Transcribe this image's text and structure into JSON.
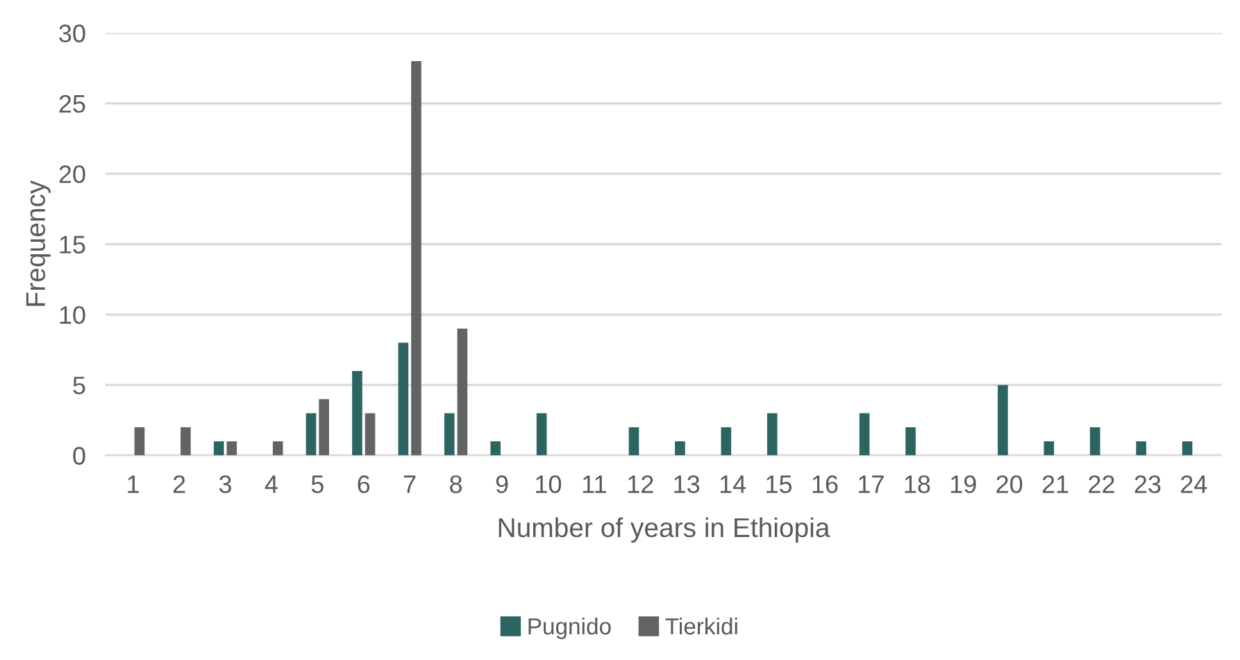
{
  "chart_data": {
    "type": "bar",
    "xlabel": "Number of years in Ethiopia",
    "ylabel": "Frequency",
    "categories": [
      "1",
      "2",
      "3",
      "4",
      "5",
      "6",
      "7",
      "8",
      "9",
      "10",
      "11",
      "12",
      "13",
      "14",
      "15",
      "16",
      "17",
      "18",
      "19",
      "20",
      "21",
      "22",
      "23",
      "24"
    ],
    "series": [
      {
        "name": "Pugnido",
        "color": "#2b6461",
        "values": [
          0,
          0,
          1,
          0,
          3,
          6,
          8,
          3,
          1,
          3,
          0,
          2,
          1,
          2,
          3,
          0,
          3,
          2,
          0,
          5,
          1,
          2,
          1,
          1
        ]
      },
      {
        "name": "Tierkidi",
        "color": "#636363",
        "values": [
          2,
          2,
          1,
          1,
          4,
          3,
          28,
          9,
          0,
          0,
          0,
          0,
          0,
          0,
          0,
          0,
          0,
          0,
          0,
          0,
          0,
          0,
          0,
          0
        ]
      }
    ],
    "ylim": [
      0,
      30
    ],
    "yticks": [
      0,
      5,
      10,
      15,
      20,
      25,
      30
    ],
    "grid": "y",
    "legend": "bottom"
  }
}
